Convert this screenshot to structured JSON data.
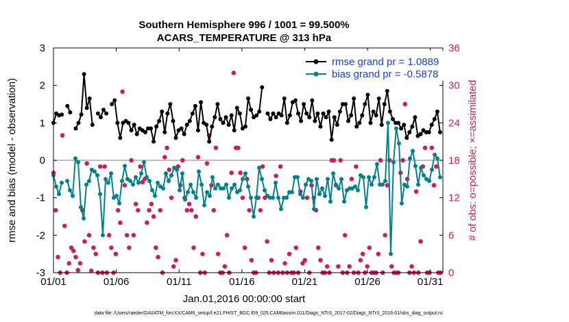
{
  "chart_data": {
    "type": "line",
    "title": "Southern Hemisphere 996 / 1001 = 99.500%",
    "subtitle": "ACARS_TEMPERATURE @ 313 hPa",
    "xlabel": "Jan.01,2016 00:00:00 start",
    "ylabel": "rmse and bias (model - observation)",
    "y2label": "# of obs: o=possible; ×=assimilated",
    "footer": "data file: /Users/raeder/DAI/ATM_forcXX/CAM6_setup/f.e21.FHIST_BGC.f09_025.CAM6assim.011/Diags_NTrS_2017-02/Diags_NTrS_2016-01/obs_diag_output.nc",
    "x_tick_labels": [
      "01/01",
      "01/06",
      "01/11",
      "01/16",
      "01/21",
      "01/26",
      "01/31"
    ],
    "x_ticks_day": [
      1,
      6,
      11,
      16,
      21,
      26,
      31
    ],
    "xlim_day": [
      1,
      32
    ],
    "ylim": [
      -3,
      3
    ],
    "y_ticks": [
      -3,
      -2,
      -1,
      0,
      1,
      2,
      3
    ],
    "y2lim": [
      0,
      36
    ],
    "y2_ticks": [
      0,
      6,
      12,
      18,
      24,
      30,
      36
    ],
    "grid": false,
    "legend_position": "top-right",
    "colors": {
      "rmse": "#000000",
      "bias": "#00808a",
      "obs": "#cc1f5a",
      "zero_line": "#aaaaaa",
      "legend_text": "#1a3fd6"
    },
    "step_days": 0.25,
    "series": [
      {
        "name": "rmse grand pr = 1.0889",
        "color": "#000000",
        "values": [
          1.0,
          1.25,
          1.2,
          1.22,
          null,
          1.45,
          1.28,
          null,
          0.85,
          1.0,
          1.22,
          2.3,
          1.4,
          1.65,
          0.95,
          null,
          1.25,
          1.15,
          1.35,
          1.25,
          null,
          1.5,
          1.6,
          1.0,
          0.6,
          1.0,
          1.05,
          1.0,
          0.8,
          0.95,
          0.7,
          0.85,
          0.8,
          0.75,
          0.85,
          0.85,
          0.5,
          0.9,
          1.05,
          1.3,
          0.75,
          1.25,
          1.5,
          1.05,
          0.6,
          0.8,
          0.85,
          0.7,
          0.95,
          1.05,
          1.25,
          1.45,
          0.8,
          1.55,
          1.0,
          0.95,
          0.5,
          0.9,
          1.15,
          1.5,
          1.1,
          1.0,
          1.15,
          0.95,
          1.2,
          0.8,
          1.4,
          1.25,
          0.85,
          0.9,
          1.65,
          1.35,
          1.15,
          1.2,
          1.3,
          1.95,
          null,
          1.25,
          1.1,
          1.25,
          1.15,
          1.25,
          1.2,
          1.65,
          1.0,
          1.2,
          1.55,
          1.6,
          1.25,
          1.05,
          1.5,
          1.25,
          1.15,
          1.6,
          1.05,
          1.25,
          0.9,
          1.25,
          1.15,
          1.3,
          0.55,
          1.15,
          0.95,
          1.3,
          1.5,
          1.5,
          1.05,
          1.2,
          1.65,
          0.9,
          1.0,
          1.2,
          1.5,
          1.75,
          1.0,
          1.3,
          1.2,
          1.65,
          0.95,
          1.5,
          1.85,
          1.3,
          1.1,
          1.0,
          1.0,
          0.85,
          0.95,
          0.6,
          0.75,
          0.9,
          1.15,
          0.65,
          0.7,
          0.8,
          0.75,
          0.75,
          0.95,
          1.1,
          1.3,
          0.75
        ]
      },
      {
        "name": "bias grand pr = -0.5878",
        "color": "#00808a",
        "values": [
          -0.4,
          -0.7,
          -0.9,
          -0.6,
          null,
          -0.55,
          -0.8,
          -0.95,
          0.05,
          -0.05,
          -1.25,
          -1.55,
          -0.65,
          -0.55,
          -0.25,
          -0.3,
          -0.4,
          -0.9,
          -2.0,
          -0.5,
          -0.6,
          -0.35,
          -1.0,
          -0.95,
          -1.15,
          -0.55,
          -0.15,
          -0.5,
          -0.55,
          -0.65,
          -0.45,
          -0.6,
          -0.35,
          -0.05,
          -0.45,
          -0.55,
          -0.8,
          -0.95,
          -0.6,
          -0.7,
          -0.75,
          -0.35,
          -0.55,
          -0.4,
          -0.2,
          -0.25,
          -0.8,
          -0.35,
          -1.05,
          -0.85,
          -0.65,
          -0.85,
          -1.0,
          -0.3,
          -0.65,
          -1.2,
          -0.85,
          -0.95,
          -0.45,
          -0.75,
          -0.65,
          -0.75,
          -0.75,
          -0.65,
          -1.0,
          -0.75,
          -0.65,
          -0.85,
          -0.8,
          -0.5,
          -0.35,
          -0.7,
          -1.0,
          -1.5,
          -1.0,
          -0.2,
          -0.5,
          -0.8,
          -0.95,
          -1.0,
          -1.0,
          -0.6,
          -1.0,
          -1.3,
          -1.0,
          -1.0,
          -0.85,
          -0.85,
          -0.45,
          -0.45,
          -0.9,
          -1.0,
          -0.65,
          -0.5,
          -0.55,
          -1.3,
          -0.5,
          -0.9,
          -0.75,
          -0.95,
          -0.5,
          -1.1,
          -0.35,
          -0.65,
          -0.75,
          -0.5,
          -1.1,
          -0.8,
          -0.75,
          -0.75,
          -0.7,
          -0.8,
          -0.4,
          -0.45,
          -1.25,
          -0.45,
          -0.65,
          -0.45,
          -0.1,
          -0.65,
          -0.65,
          -0.55,
          1.0,
          -2.5,
          -0.05,
          0.85,
          0.45,
          -1.15,
          -0.65,
          -0.7,
          0.05,
          0.25,
          -0.15,
          -0.65,
          -0.2,
          -0.4,
          -0.5,
          -0.55,
          -0.25,
          0.15,
          0.05,
          -0.45
        ]
      },
      {
        "name": "possible",
        "color": "#cc1f5a",
        "values": [
          16,
          10,
          2.5,
          0,
          22,
          7.5,
          0,
          1.5,
          4,
          3.5,
          2.5,
          0.4,
          1.5,
          10,
          5,
          17.5,
          6,
          0.3,
          4,
          3,
          0,
          17,
          0,
          17,
          0,
          6,
          4,
          0,
          3,
          10,
          8,
          29,
          14,
          6,
          4,
          18,
          6,
          11,
          10,
          17,
          14.5,
          15,
          8,
          10,
          11,
          9,
          4,
          2.5,
          10,
          0,
          18.5,
          20,
          16.5,
          12,
          1,
          2,
          17,
          14,
          18,
          12,
          10,
          11,
          10,
          4,
          9,
          18.5,
          0,
          3,
          0,
          17.5,
          22,
          14,
          10,
          20,
          3,
          0,
          0,
          1,
          6,
          0,
          16,
          32,
          20,
          20,
          16,
          12,
          4,
          15,
          10,
          2,
          0,
          0,
          12,
          10,
          17,
          12,
          5,
          0,
          2,
          0,
          15.5,
          0,
          17,
          0,
          1.5,
          0,
          3,
          0,
          0,
          4,
          0,
          13,
          1.5,
          2,
          12,
          0,
          14,
          12,
          10,
          4,
          2,
          0,
          0,
          1,
          0,
          18,
          18,
          14,
          1,
          18,
          0,
          6,
          0,
          1,
          15,
          0,
          17,
          0,
          2,
          3,
          0,
          1,
          4,
          0,
          0,
          0,
          3,
          18,
          0,
          6,
          14,
          18,
          1,
          0,
          0,
          0,
          16,
          18,
          27,
          15,
          0,
          1,
          0,
          13,
          0,
          5,
          17,
          20,
          0,
          0,
          20,
          14,
          17,
          0,
          0
        ]
      },
      {
        "name": "assimilated",
        "color": "#cc1f5a",
        "values": [
          16,
          10,
          2.5,
          0,
          22,
          7.5,
          0,
          1.5,
          4,
          3.5,
          2.5,
          0.4,
          1.5,
          10,
          5,
          17.5,
          6,
          0.3,
          4,
          3,
          0,
          17,
          0,
          17,
          0,
          6,
          4,
          0,
          3,
          10,
          8,
          29,
          14,
          6,
          4,
          18,
          6,
          11,
          10,
          17,
          14.5,
          15,
          8,
          10,
          11,
          9,
          4,
          2.5,
          10,
          0,
          18.5,
          20,
          16.5,
          12,
          1,
          2,
          17,
          14,
          18,
          12,
          10,
          11,
          10,
          4,
          9,
          18.5,
          0,
          3,
          0,
          17.5,
          22,
          14,
          10,
          20,
          3,
          0,
          0,
          1,
          6,
          0,
          16,
          32,
          20,
          20,
          16,
          12,
          4,
          15,
          10,
          2,
          0,
          0,
          12,
          10,
          17,
          12,
          5,
          0,
          2,
          0,
          15.5,
          0,
          17,
          0,
          1.5,
          0,
          3,
          0,
          0,
          4,
          0,
          13,
          1.5,
          2,
          12,
          0,
          14,
          12,
          10,
          4,
          2,
          0,
          0,
          1,
          0,
          18,
          18,
          14,
          1,
          18,
          0,
          6,
          0,
          1,
          15,
          0,
          17,
          0,
          2,
          3,
          0,
          1,
          4,
          0,
          0,
          0,
          3,
          18,
          0,
          6,
          14,
          18,
          1,
          0,
          0,
          0,
          16,
          18,
          27,
          15,
          0,
          1,
          0,
          13,
          0,
          5,
          17,
          20,
          0,
          0,
          20,
          14,
          17,
          0,
          0
        ]
      }
    ]
  }
}
